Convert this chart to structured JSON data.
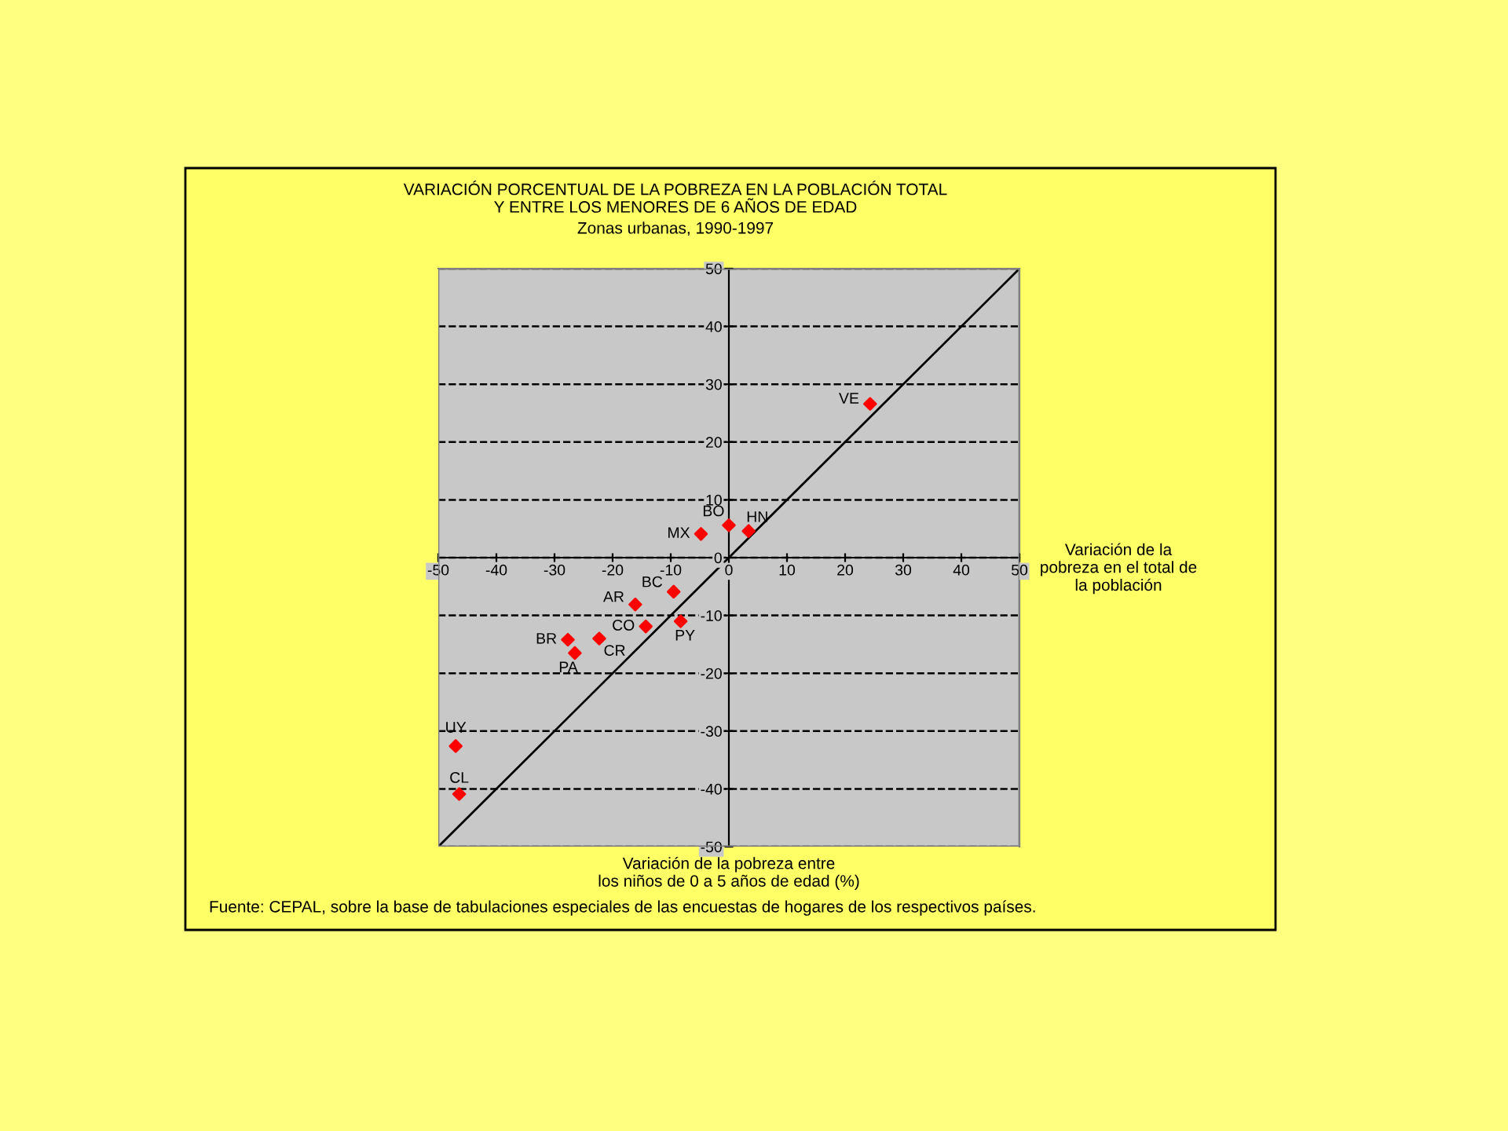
{
  "chart_data": {
    "type": "scatter",
    "title": "VARIACIÓN PORCENTUAL DE LA POBREZA EN LA POBLACIÓN TOTAL\nY ENTRE LOS MENORES DE 6 AÑOS DE EDAD",
    "subtitle": "Zonas urbanas, 1990-1997",
    "xlabel": "Variación de la pobreza entre\nlos niños de 0 a 5 años de edad (%)",
    "ylabel": "Variación de la\npobreza en el total de\nla población",
    "series": [
      {
        "color": "#ff0000",
        "marker": "diamond",
        "x": [
          24.3,
          3.4,
          0,
          -4.8,
          -9.5,
          -16.1,
          -14.3,
          -8.3,
          -27.7,
          -22.3,
          -26.5,
          -47.0,
          -46.4
        ],
        "values": [
          26.6,
          4.6,
          5.6,
          4.1,
          -5.9,
          -8.1,
          -11.9,
          -11.0,
          -14.2,
          -14.0,
          -16.5,
          -32.6,
          -40.9
        ]
      },
      {
        "type": "line",
        "color": "#000000",
        "line_style": "solid",
        "marker": "none",
        "x": [
          -50,
          50
        ],
        "values": [
          -50,
          50
        ]
      }
    ],
    "annotations": [
      {
        "text": "VE",
        "x": 24.3,
        "y": 26.6
      },
      {
        "text": "HN",
        "x": 3.4,
        "y": 4.6
      },
      {
        "text": "BO",
        "x": 0,
        "y": 5.6
      },
      {
        "text": "MX",
        "x": -4.8,
        "y": 4.1
      },
      {
        "text": "BC",
        "x": -9.5,
        "y": -5.9
      },
      {
        "text": "AR",
        "x": -16.1,
        "y": -8.1
      },
      {
        "text": "CO",
        "x": -14.3,
        "y": -11.9
      },
      {
        "text": "PY",
        "x": -8.3,
        "y": -11.0
      },
      {
        "text": "BR",
        "x": -27.7,
        "y": -14.2
      },
      {
        "text": "CR",
        "x": -22.3,
        "y": -14.0
      },
      {
        "text": "PA",
        "x": -26.5,
        "y": -16.5
      },
      {
        "text": "UY",
        "x": -47.0,
        "y": -32.6
      },
      {
        "text": "CL",
        "x": -46.4,
        "y": -40.9
      },
      "Fuente: CEPAL, sobre la base de tabulaciones especiales de las encuestas de hogares de los respectivos países."
    ],
    "xlim": [
      -50,
      50
    ],
    "ylim": [
      -50,
      50
    ],
    "xticks": [
      -50,
      -40,
      -30,
      -20,
      -10,
      0,
      10,
      20,
      30,
      40,
      50
    ],
    "yticks": [
      -50,
      -40,
      -30,
      -20,
      -10,
      0,
      10,
      20,
      30,
      40,
      50
    ],
    "grid": "y",
    "legend": false
  }
}
